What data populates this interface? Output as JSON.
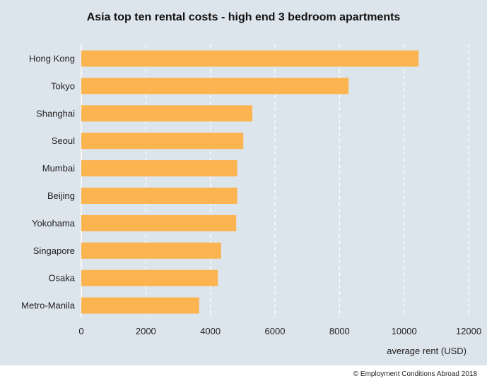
{
  "chart_data": {
    "type": "bar",
    "orientation": "horizontal",
    "title": "Asia top ten rental costs - high end 3 bedroom apartments",
    "xlabel": "average rent (USD)",
    "ylabel": "",
    "categories": [
      "Hong Kong",
      "Tokyo",
      "Shanghai",
      "Seoul",
      "Mumbai",
      "Beijing",
      "Yokohama",
      "Singapore",
      "Osaka",
      "Metro-Manila"
    ],
    "values": [
      10450,
      8280,
      5300,
      5020,
      4830,
      4830,
      4800,
      4330,
      4230,
      3650
    ],
    "xlim": [
      0,
      12000
    ],
    "xticks": [
      0,
      2000,
      4000,
      6000,
      8000,
      10000,
      12000
    ],
    "grid": "vertical dashed",
    "bar_color": "#fbb450",
    "grid_color": "#ffffff"
  },
  "footer": {
    "source": "© Employment Conditions Abroad 2018"
  }
}
